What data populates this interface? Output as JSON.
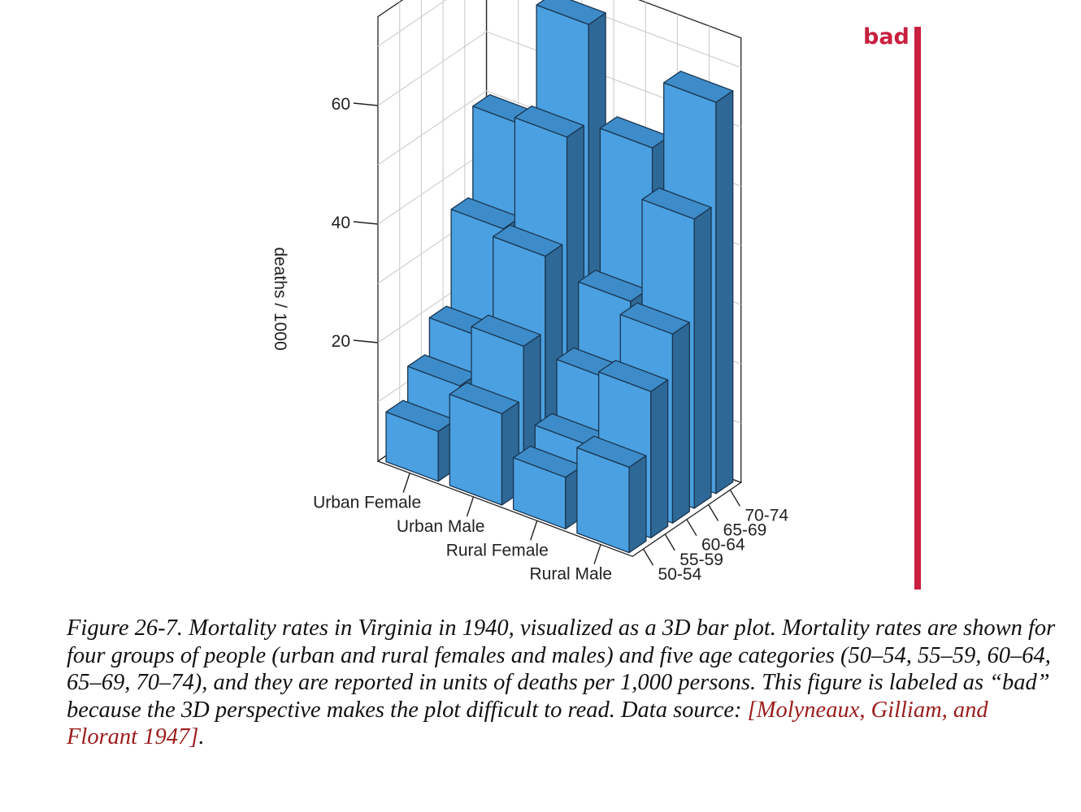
{
  "rating": {
    "label": "bad",
    "color": "#c8203e"
  },
  "chart_data": {
    "type": "bar",
    "subtype": "3d-bar",
    "title": "",
    "ylabel": "deaths / 1000",
    "ylim": [
      0,
      75
    ],
    "yticks": [
      20,
      40,
      60
    ],
    "groups": [
      "Urban Female",
      "Urban Male",
      "Rural Female",
      "Rural Male"
    ],
    "ages": [
      "50-54",
      "55-59",
      "60-64",
      "65-69",
      "70-74"
    ],
    "series": [
      {
        "name": "Urban Female",
        "values": [
          8.4,
          13.6,
          19.3,
          35.1,
          50.0
        ]
      },
      {
        "name": "Urban Male",
        "values": [
          15.4,
          24.3,
          37.0,
          54.6,
          71.1
        ]
      },
      {
        "name": "Rural Female",
        "values": [
          8.7,
          11.7,
          20.3,
          30.9,
          54.3
        ]
      },
      {
        "name": "Rural Male",
        "values": [
          14.4,
          24.7,
          31.9,
          48.8,
          66.0
        ]
      }
    ],
    "bar_color": "#4ea0e0",
    "grid": true,
    "colors": {
      "front": "#4aa0e0",
      "top": "#3d8cc9",
      "side": "#2e6896",
      "edge": "#1a3550"
    }
  },
  "caption": {
    "lead": "Figure 26-7. Mortality rates in Virginia in 1940, visualized as a 3D bar plot. Mortality rates are shown for four groups of people (urban and rural females and males) and five age categories (50–54, 55–59, 60–64, 65–69, 70–74), and they are reported in units of deaths per 1,000 persons. This figure is labeled as “bad” because the 3D perspective makes the plot difficult to read. Data source: ",
    "citation": "[Molyneaux, Gilliam, and Florant 1947]",
    "end": "."
  }
}
